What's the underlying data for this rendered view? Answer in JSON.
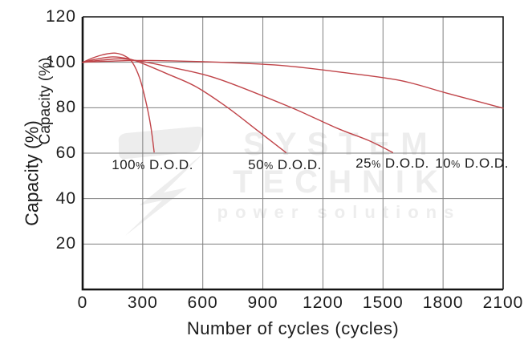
{
  "watermark": {
    "line1": "SYSTEM",
    "line2": "TECHNIK",
    "line3": "power solutions",
    "color": "#ededed"
  },
  "chart_data": {
    "type": "line",
    "title": "",
    "xlabel": "Number of cycles (cycles)",
    "ylabel": "Capacity (%)",
    "xlim": [
      0,
      2100
    ],
    "ylim": [
      0,
      120
    ],
    "x_ticks": [
      0,
      300,
      600,
      900,
      1200,
      1500,
      1800,
      2100
    ],
    "y_ticks": [
      20,
      40,
      60,
      80,
      100,
      120
    ],
    "grid": true,
    "legend_position": "none",
    "colors": {
      "series": "#c04449",
      "grid": "#7f7f7f",
      "axis": "#141414",
      "text": "#1c1c1c"
    },
    "series": [
      {
        "name": "100% D.O.D.",
        "points": [
          [
            0,
            100
          ],
          [
            60,
            102.2
          ],
          [
            115,
            103.6
          ],
          [
            165,
            104
          ],
          [
            210,
            102.8
          ],
          [
            248,
            100
          ],
          [
            285,
            93
          ],
          [
            315,
            83
          ],
          [
            340,
            72
          ],
          [
            357,
            60.5
          ]
        ]
      },
      {
        "name": "50% D.O.D.",
        "points": [
          [
            0,
            100
          ],
          [
            70,
            101.4
          ],
          [
            150,
            102.4
          ],
          [
            225,
            101.6
          ],
          [
            285,
            100
          ],
          [
            420,
            95
          ],
          [
            565,
            89.3
          ],
          [
            725,
            80
          ],
          [
            880,
            69.5
          ],
          [
            1015,
            60.3
          ]
        ]
      },
      {
        "name": "25% D.O.D.",
        "points": [
          [
            0,
            100
          ],
          [
            90,
            100.9
          ],
          [
            195,
            101.5
          ],
          [
            300,
            100.3
          ],
          [
            430,
            98
          ],
          [
            670,
            92.9
          ],
          [
            1030,
            80.5
          ],
          [
            1270,
            71
          ],
          [
            1430,
            65.5
          ],
          [
            1548,
            60.3
          ]
        ]
      },
      {
        "name": "10% D.O.D.",
        "points": [
          [
            0,
            100
          ],
          [
            130,
            100.5
          ],
          [
            300,
            100.8
          ],
          [
            620,
            100.2
          ],
          [
            990,
            98.6
          ],
          [
            1310,
            95.4
          ],
          [
            1590,
            91.9
          ],
          [
            1815,
            86.5
          ],
          [
            2100,
            79.8
          ]
        ]
      }
    ],
    "annotations": [
      {
        "text": "100% D.O.D.",
        "x": 349,
        "y": 54.7
      },
      {
        "text": "50% D.O.D.",
        "x": 1010,
        "y": 54.7
      },
      {
        "text": "25% D.O.D.",
        "x": 1547,
        "y": 55.4
      },
      {
        "text": "10% D.O.D.",
        "x": 1944,
        "y": 55.4
      }
    ]
  }
}
